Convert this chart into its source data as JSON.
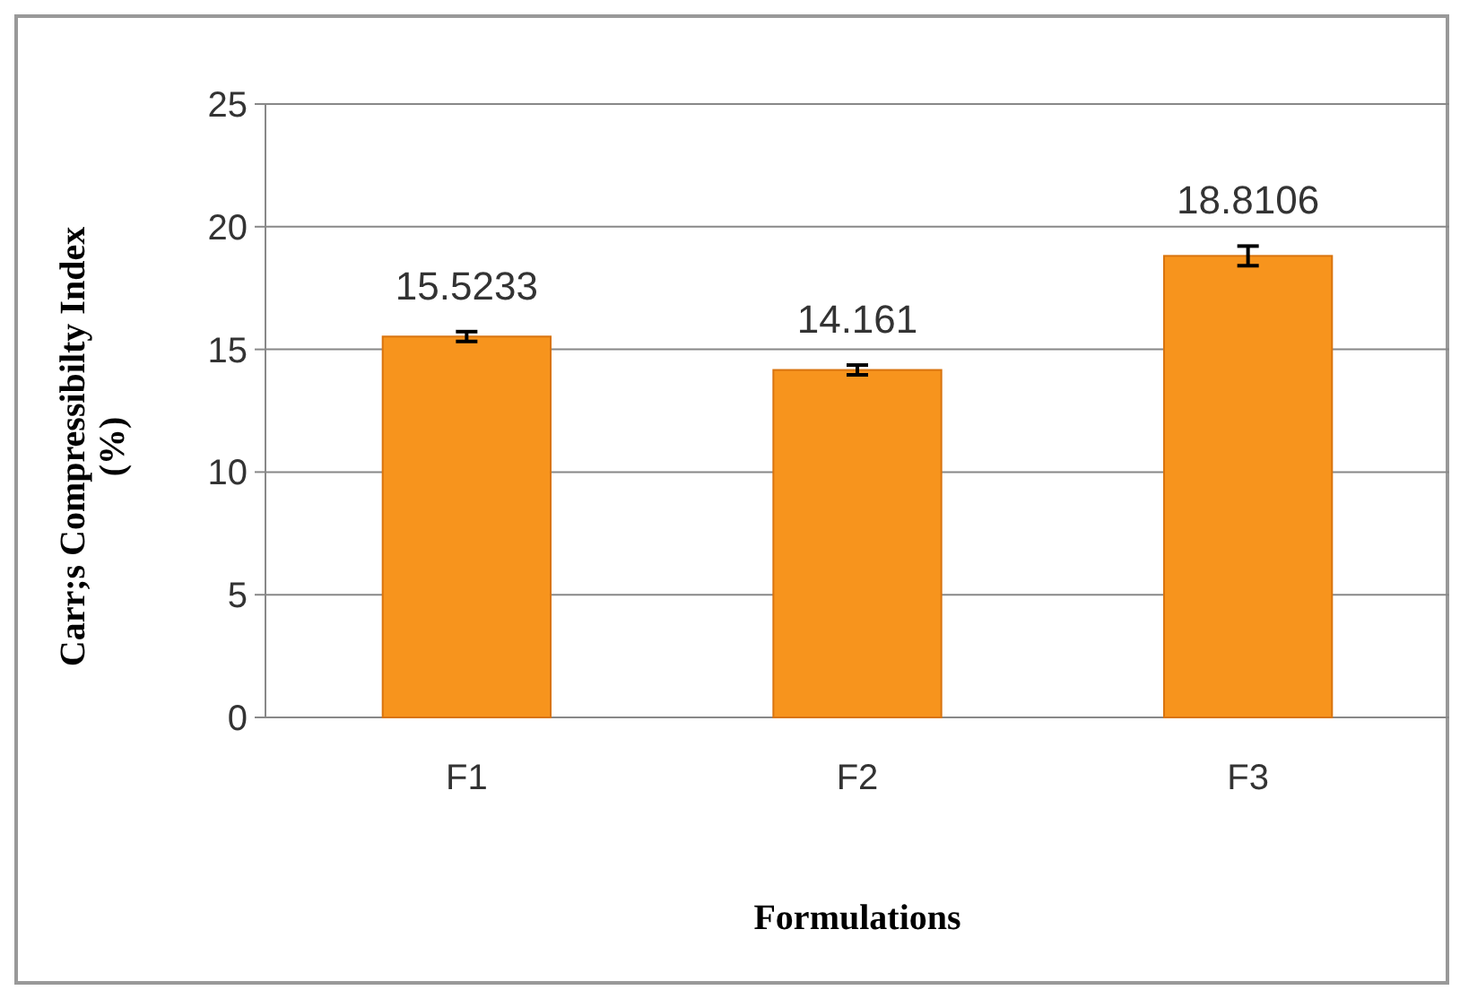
{
  "chart_data": {
    "type": "bar",
    "xlabel": "Formulations",
    "ylabel": "Carr;s Compressibilty Index\n(%)",
    "categories": [
      "F1",
      "F2",
      "F3"
    ],
    "values": [
      15.5233,
      14.161,
      18.8106
    ],
    "errors": [
      0.2,
      0.2,
      0.4
    ],
    "color": "#f7941d",
    "ylim": [
      0,
      25
    ],
    "yticks": [
      0,
      5,
      10,
      15,
      20,
      25
    ],
    "grid": "y",
    "data_labels": true
  }
}
